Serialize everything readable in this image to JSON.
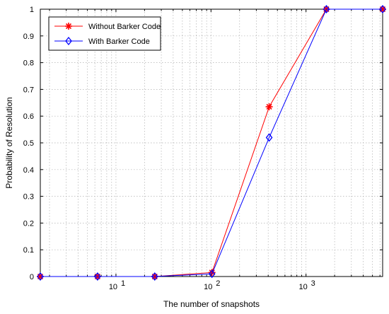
{
  "chart_data": {
    "type": "line",
    "x_scale": "log",
    "xlabel": "The number of snapshots",
    "ylabel": "Probability of Resolution",
    "xlim": [
      1.6,
      6400
    ],
    "ylim": [
      0,
      1
    ],
    "x_ticks": [
      {
        "value": 10,
        "base": "10",
        "exp": "1"
      },
      {
        "value": 100,
        "base": "10",
        "exp": "2"
      },
      {
        "value": 1000,
        "base": "10",
        "exp": "3"
      }
    ],
    "y_ticks": [
      "0",
      "0.1",
      "0.2",
      "0.3",
      "0.4",
      "0.5",
      "0.6",
      "0.7",
      "0.8",
      "0.9",
      "1"
    ],
    "grid": true,
    "legend_position": "top-left",
    "series": [
      {
        "name": "Without Barker Code",
        "color": "#ff0000",
        "marker": "asterisk",
        "x": [
          1.6,
          6.4,
          25.6,
          102.4,
          409.6,
          1638.4,
          6400
        ],
        "y": [
          0,
          0,
          0,
          0.015,
          0.635,
          1,
          1
        ]
      },
      {
        "name": "With Barker Code",
        "color": "#0000ff",
        "marker": "diamond",
        "x": [
          1.6,
          6.4,
          25.6,
          102.4,
          409.6,
          1638.4,
          6400
        ],
        "y": [
          0,
          0,
          0,
          0.01,
          0.52,
          1,
          1
        ]
      }
    ]
  }
}
